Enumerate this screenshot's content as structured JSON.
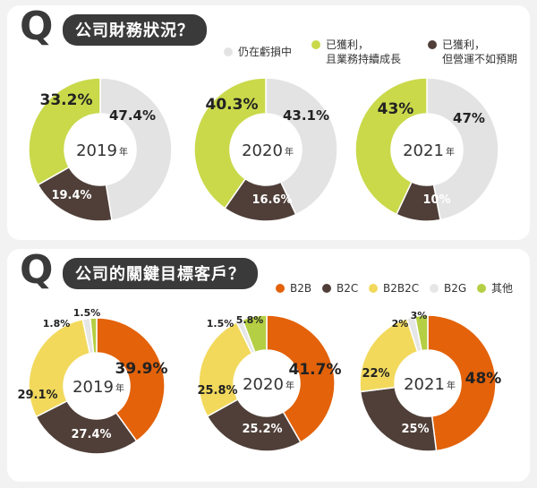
{
  "colors": {
    "loss": "#e3e3e3",
    "profit_growth": "#c9d94a",
    "profit_below": "#4f3f38",
    "b2b": "#e3620a",
    "b2c": "#4f3f38",
    "b2b2c": "#f2d95c",
    "b2g": "#e6e6e6",
    "other": "#b4cf43"
  },
  "section1": {
    "q": "Q",
    "title": "公司財務狀況？",
    "legend": [
      {
        "key": "loss",
        "label": "仍在虧損中"
      },
      {
        "key": "profit_growth",
        "label": "已獲利，\n且業務持續成長"
      },
      {
        "key": "profit_below",
        "label": "已獲利，\n但營運不如預期"
      }
    ]
  },
  "section2": {
    "q": "Q",
    "title": "公司的關鍵目標客戶？",
    "legend": [
      {
        "key": "b2b",
        "label": "B2B"
      },
      {
        "key": "b2c",
        "label": "B2C"
      },
      {
        "key": "b2b2c",
        "label": "B2B2C"
      },
      {
        "key": "b2g",
        "label": "B2G"
      },
      {
        "key": "other",
        "label": "其他"
      }
    ]
  },
  "chart_data": [
    {
      "type": "pie",
      "title": "公司財務狀況 2019",
      "year": "2019",
      "year_suffix": "年",
      "categories": [
        "仍在虧損中",
        "已獲利，但營運不如預期",
        "已獲利，且業務持續成長"
      ],
      "keys": [
        "loss",
        "profit_below",
        "profit_growth"
      ],
      "values": [
        47.4,
        19.4,
        33.2
      ],
      "labels": [
        "47.4%",
        "19.4%",
        "33.2%"
      ]
    },
    {
      "type": "pie",
      "title": "公司財務狀況 2020",
      "year": "2020",
      "year_suffix": "年",
      "categories": [
        "仍在虧損中",
        "已獲利，但營運不如預期",
        "已獲利，且業務持續成長"
      ],
      "keys": [
        "loss",
        "profit_below",
        "profit_growth"
      ],
      "values": [
        43.1,
        16.6,
        40.3
      ],
      "labels": [
        "43.1%",
        "16.6%",
        "40.3%"
      ]
    },
    {
      "type": "pie",
      "title": "公司財務狀況 2021",
      "year": "2021",
      "year_suffix": "年",
      "categories": [
        "仍在虧損中",
        "已獲利，但營運不如預期",
        "已獲利，且業務持續成長"
      ],
      "keys": [
        "loss",
        "profit_below",
        "profit_growth"
      ],
      "values": [
        47,
        10,
        43
      ],
      "labels": [
        "47%",
        "10%",
        "43%"
      ]
    },
    {
      "type": "pie",
      "title": "公司的關鍵目標客戶 2019",
      "year": "2019",
      "year_suffix": "年",
      "categories": [
        "B2B",
        "B2C",
        "B2B2C",
        "B2G",
        "其他"
      ],
      "keys": [
        "b2b",
        "b2c",
        "b2b2c",
        "b2g",
        "other"
      ],
      "values": [
        39.9,
        27.4,
        29.1,
        1.8,
        1.5
      ],
      "labels": [
        "39.9%",
        "27.4%",
        "29.1%",
        "1.8%",
        "1.5%"
      ]
    },
    {
      "type": "pie",
      "title": "公司的關鍵目標客戶 2020",
      "year": "2020",
      "year_suffix": "年",
      "categories": [
        "B2B",
        "B2C",
        "B2B2C",
        "B2G",
        "其他"
      ],
      "keys": [
        "b2b",
        "b2c",
        "b2b2c",
        "b2g",
        "other"
      ],
      "values": [
        41.7,
        25.2,
        25.8,
        1.5,
        5.8
      ],
      "labels": [
        "41.7%",
        "25.2%",
        "25.8%",
        "1.5%",
        "5.8%"
      ]
    },
    {
      "type": "pie",
      "title": "公司的關鍵目標客戶 2021",
      "year": "2021",
      "year_suffix": "年",
      "categories": [
        "B2B",
        "B2C",
        "B2B2C",
        "B2G",
        "其他"
      ],
      "keys": [
        "b2b",
        "b2c",
        "b2b2c",
        "b2g",
        "other"
      ],
      "values": [
        48,
        25,
        22,
        2,
        3
      ],
      "labels": [
        "48%",
        "25%",
        "22%",
        "2%",
        "3%"
      ]
    }
  ]
}
